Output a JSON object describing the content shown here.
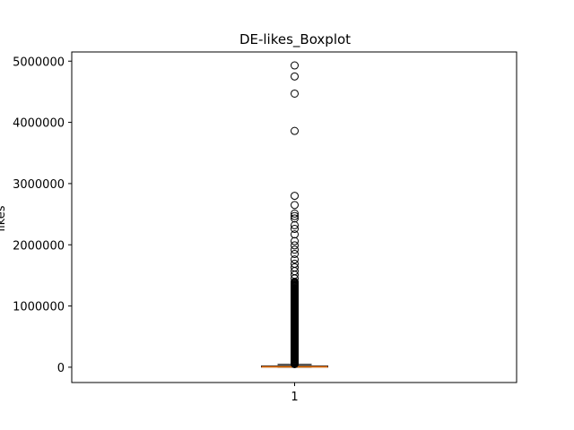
{
  "chart_data": {
    "type": "boxplot",
    "title": "DE-likes_Boxplot",
    "xlabel": "",
    "ylabel": "likes",
    "categories": [
      "1"
    ],
    "ylim": [
      -250000,
      5150000
    ],
    "yticks": [
      0,
      1000000,
      2000000,
      3000000,
      4000000,
      5000000
    ],
    "ytick_labels": [
      "0",
      "1000000",
      "2000000",
      "3000000",
      "4000000",
      "5000000"
    ],
    "box": {
      "min": 0,
      "q1": 2000,
      "median": 6000,
      "q3": 20000,
      "whisker_high": 45000
    },
    "outliers": [
      4930000,
      4750000,
      4470000,
      3860000,
      2800000,
      2650000,
      2510000,
      2470000,
      2430000,
      2320000,
      2260000,
      2170000,
      2060000,
      1990000,
      1920000,
      1850000,
      1760000,
      1690000,
      1630000,
      1570000,
      1510000,
      1450000,
      1390000,
      1330000,
      1270000,
      1210000,
      1150000,
      1090000,
      1030000,
      980000,
      930000,
      880000,
      830000,
      780000,
      740000,
      700000,
      660000,
      620000,
      580000,
      540000,
      500000,
      460000,
      420000,
      380000,
      340000,
      300000,
      260000,
      220000,
      180000,
      140000,
      100000,
      70000
    ],
    "colors": {
      "median": "#ff7f0e",
      "box": "#000000",
      "outlier": "#000000"
    }
  }
}
